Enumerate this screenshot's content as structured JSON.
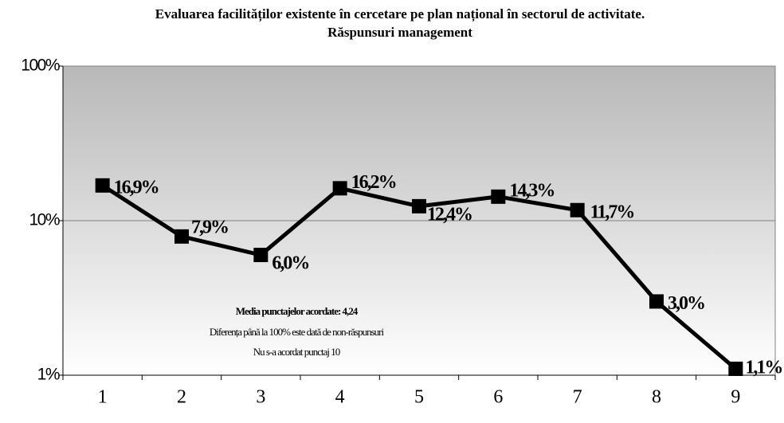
{
  "chart_data": {
    "type": "line",
    "title": [
      "Evaluarea facilităților existente în cercetare pe plan național în sectorul de activitate.",
      "Răspunsuri management"
    ],
    "categories": [
      "1",
      "2",
      "3",
      "4",
      "5",
      "6",
      "7",
      "8",
      "9"
    ],
    "series": [
      {
        "name": "Răspunsuri management",
        "color": "#000000",
        "values": [
          16.9,
          7.9,
          6.0,
          16.2,
          12.4,
          14.3,
          11.7,
          3.0,
          1.1
        ],
        "value_labels": [
          "16,9%",
          "7,9%",
          "6,0%",
          "16,2%",
          "12,4%",
          "14,3%",
          "11,7%",
          "3,0%",
          "1,1%"
        ]
      }
    ],
    "ylim": [
      1,
      100
    ],
    "yticks": [
      {
        "value": 1,
        "label": "1%"
      },
      {
        "value": 10,
        "label": "10%"
      },
      {
        "value": 100,
        "label": "100%"
      }
    ],
    "log_scale": true,
    "grid": true,
    "annotations": [
      "Media punctajelor acordate: 4,24",
      "Diferența până la 100% este dată de non-răspunsuri",
      "Nu s-a acordat punctaj 10"
    ]
  }
}
